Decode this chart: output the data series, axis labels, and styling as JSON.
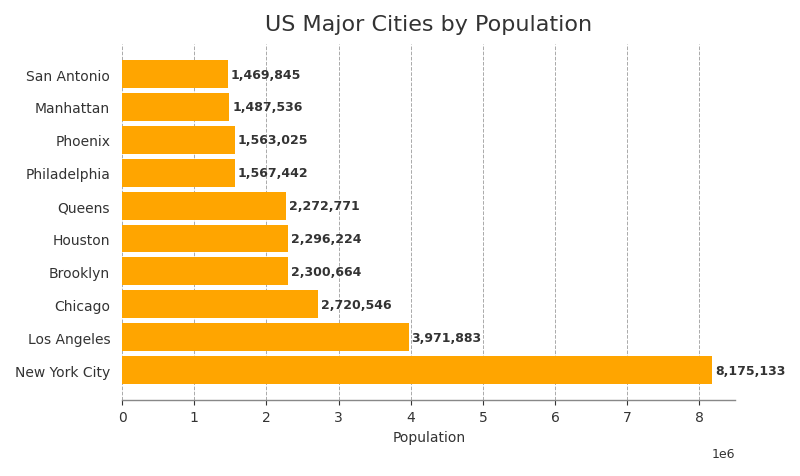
{
  "title": "US Major Cities by Population",
  "xlabel": "Population",
  "cities": [
    "New York City",
    "Los Angeles",
    "Chicago",
    "Brooklyn",
    "Houston",
    "Queens",
    "Philadelphia",
    "Phoenix",
    "Manhattan",
    "San Antonio"
  ],
  "populations": [
    8175133,
    3971883,
    2720546,
    2300664,
    2296224,
    2272771,
    1567442,
    1563025,
    1487536,
    1469845
  ],
  "bar_color": "#FFA500",
  "background_color": "#ffffff",
  "grid_color": "#aaaaaa",
  "label_color": "#333333",
  "title_fontsize": 16,
  "label_fontsize": 10,
  "tick_fontsize": 10,
  "value_fontsize": 9,
  "xlim": [
    0,
    8500000
  ]
}
